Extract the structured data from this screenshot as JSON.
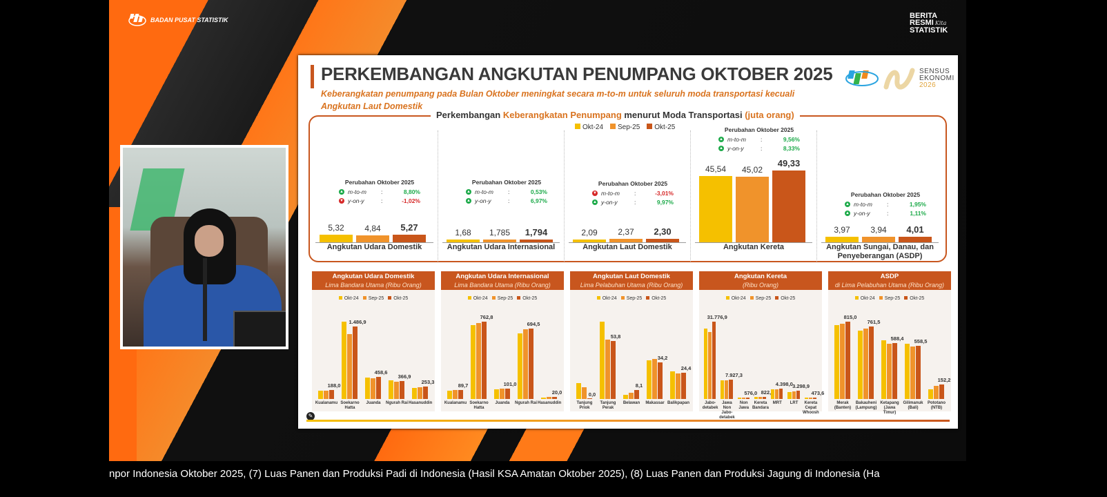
{
  "broadcast": {
    "org": "BADAN PUSAT STATISTIK",
    "brs": [
      "BERITA",
      "RESMI",
      "STATISTIK"
    ],
    "brs_script": "Kita",
    "ticker": "npor Indonesia Oktober 2025, (7) Luas Panen dan Produksi Padi di Indonesia (Hasil KSA Amatan Oktober 2025), (8) Luas Panen dan Produksi Jagung di Indonesia (Ha"
  },
  "slide": {
    "title": "PERKEMBANGAN ANGKUTAN PENUMPANG OKTOBER 2025",
    "subtitle": "Keberangkatan penumpang pada Bulan Oktober meningkat secara m-to-m untuk seluruh moda transportasi kecuali Angkutan Laut Domestik",
    "logo": {
      "line1": "SENSUS",
      "line2": "EKONOMI",
      "line3": "2026"
    },
    "colors": {
      "okt24": "#F5C000",
      "sep25": "#F0932B",
      "okt25": "#C9561A",
      "up": "#1DAA4A",
      "down": "#D62828"
    }
  },
  "chart_data": [
    {
      "type": "bar",
      "title_pre": "Perkembangan ",
      "title_hl": "Keberangkatan Penumpang",
      "title_post": " menurut Moda Transportasi ",
      "title_unit": "(juta orang)",
      "legend": [
        "Okt-24",
        "Sep-25",
        "Okt-25"
      ],
      "categories": [
        "Angkutan Udara Domestik",
        "Angkutan Udara Internasional",
        "Angkutan Laut Domestik",
        "Angkutan Kereta",
        "Angkutan Sungai, Danau, dan Penyeberangan (ASDP)"
      ],
      "values": [
        [
          "5,32",
          "4,84",
          "5,27"
        ],
        [
          "1,68",
          "1,785",
          "1,794"
        ],
        [
          "2,09",
          "2,37",
          "2,30"
        ],
        [
          "45,54",
          "45,02",
          "49,33"
        ],
        [
          "3,97",
          "3,94",
          "4,01"
        ]
      ],
      "numeric": [
        [
          5.32,
          4.84,
          5.27
        ],
        [
          1.68,
          1.785,
          1.794
        ],
        [
          2.09,
          2.37,
          2.3
        ],
        [
          45.54,
          45.02,
          49.33
        ],
        [
          3.97,
          3.94,
          4.01
        ]
      ],
      "changes": [
        {
          "heading": "Perubahan Oktober 2025",
          "mtm": "8,80%",
          "yoy": "-1,02%",
          "mtm_dir": "up",
          "yoy_dir": "down"
        },
        {
          "heading": "Perubahan Oktober 2025",
          "mtm": "0,53%",
          "yoy": "6,97%",
          "mtm_dir": "up",
          "yoy_dir": "up"
        },
        {
          "heading": "Perubahan Oktober 2025",
          "mtm": "-3,01%",
          "yoy": "9,97%",
          "mtm_dir": "down",
          "yoy_dir": "up"
        },
        {
          "heading": "Perubahan Oktober 2025",
          "mtm": "9,56%",
          "yoy": "8,33%",
          "mtm_dir": "up",
          "yoy_dir": "up"
        },
        {
          "heading": "Perubahan Oktober 2025",
          "mtm": "1,95%",
          "yoy": "1,11%",
          "mtm_dir": "up",
          "yoy_dir": "up"
        }
      ],
      "mtm_label": "m-to-m",
      "yoy_label": "y-on-y"
    },
    {
      "type": "bar",
      "title": "Angkutan Udara Domestik",
      "subtitle": "Lima Bandara Utama (Ribu Orang)",
      "legend": [
        "Okt-24",
        "Sep-25",
        "Okt-25"
      ],
      "categories": [
        "Kualanamu",
        "Soekarno\nHatta",
        "Juanda",
        "Ngurah Rai",
        "Hasanuddin"
      ],
      "series": [
        {
          "name": "Okt-24",
          "values": [
            170,
            1590,
            440,
            385,
            225
          ]
        },
        {
          "name": "Sep-25",
          "values": [
            170,
            1340,
            420,
            360,
            235
          ]
        },
        {
          "name": "Okt-25",
          "values": [
            188.0,
            1486.9,
            458.6,
            366.9,
            253.3
          ]
        }
      ],
      "labels": [
        "188,0",
        "1.486,9",
        "458,6",
        "366,9",
        "253,3"
      ]
    },
    {
      "type": "bar",
      "title": "Angkutan Udara Internasional",
      "subtitle": "Lima Bandara Utama (Ribu Orang)",
      "legend": [
        "Okt-24",
        "Sep-25",
        "Okt-25"
      ],
      "categories": [
        "Kualanamu",
        "Soekarno\nHatta",
        "Juanda",
        "Ngurah Rai",
        "Hasanuddin"
      ],
      "series": [
        {
          "name": "Okt-24",
          "values": [
            85,
            730,
            95,
            645,
            15
          ]
        },
        {
          "name": "Sep-25",
          "values": [
            92,
            750,
            100,
            685,
            18
          ]
        },
        {
          "name": "Okt-25",
          "values": [
            89.7,
            762.8,
            101.0,
            694.5,
            20.0
          ]
        }
      ],
      "labels": [
        "89,7",
        "762,8",
        "101,0",
        "694,5",
        "20,0"
      ]
    },
    {
      "type": "bar",
      "title": "Angkutan Laut Domestik",
      "subtitle": "Lima Pelabuhan Utama (Ribu Orang)",
      "legend": [
        "Okt-24",
        "Sep-25",
        "Okt-25"
      ],
      "categories": [
        "Tanjung\nPriok",
        "Tanjung\nPerak",
        "Belawan",
        "Makassar",
        "Balikpapan"
      ],
      "series": [
        {
          "name": "Okt-24",
          "values": [
            15,
            72,
            4,
            36,
            26
          ]
        },
        {
          "name": "Sep-25",
          "values": [
            11,
            55,
            6,
            37,
            24
          ]
        },
        {
          "name": "Okt-25",
          "values": [
            0.0,
            53.8,
            8.1,
            34.2,
            24.4
          ]
        }
      ],
      "labels": [
        "0,0",
        "53,8",
        "8,1",
        "34,2",
        "24,4"
      ]
    },
    {
      "type": "bar",
      "title": "Angkutan Kereta",
      "subtitle": "(Ribu Orang)",
      "legend": [
        "Okt-24",
        "Sep-25",
        "Okt-25"
      ],
      "categories": [
        "Jabo-\ndetabek",
        "Jawa Non\nJabo-\ndetabek",
        "Non\nJawa",
        "Kereta\nBandara",
        "MRT",
        "LRT",
        "Kereta\nCepat\nWhoosh"
      ],
      "series": [
        {
          "name": "Okt-24",
          "values": [
            29000,
            7600,
            560,
            780,
            4000,
            2900,
            450
          ]
        },
        {
          "name": "Sep-25",
          "values": [
            27500,
            7800,
            570,
            800,
            4100,
            3100,
            460
          ]
        },
        {
          "name": "Okt-25",
          "values": [
            31776.9,
            7927.3,
            576.0,
            822.1,
            4398.0,
            3298.9,
            473.6
          ]
        }
      ],
      "labels": [
        "31.776,9",
        "7.927,3",
        "576,0",
        "822,1",
        "4.398,0",
        "3.298,9",
        "473,6"
      ]
    },
    {
      "type": "bar",
      "title": "ASDP",
      "subtitle": "di Lima Pelabuhan Utama (Ribu Orang)",
      "legend": [
        "Okt-24",
        "Sep-25",
        "Okt-25"
      ],
      "categories": [
        "Merak\n(Banten)",
        "Bakauheni\n(Lampung)",
        "Ketapang\n(Jawa\nTimur)",
        "Gilimanuk\n(Bali)",
        "Pototano\n(NTB)"
      ],
      "series": [
        {
          "name": "Okt-24",
          "values": [
            780,
            720,
            620,
            580,
            100
          ]
        },
        {
          "name": "Sep-25",
          "values": [
            795,
            740,
            580,
            555,
            140
          ]
        },
        {
          "name": "Okt-25",
          "values": [
            815.0,
            761.5,
            588.4,
            558.5,
            152.2
          ]
        }
      ],
      "labels": [
        "815,0",
        "761,5",
        "588,4",
        "558,5",
        "152,2"
      ]
    }
  ]
}
